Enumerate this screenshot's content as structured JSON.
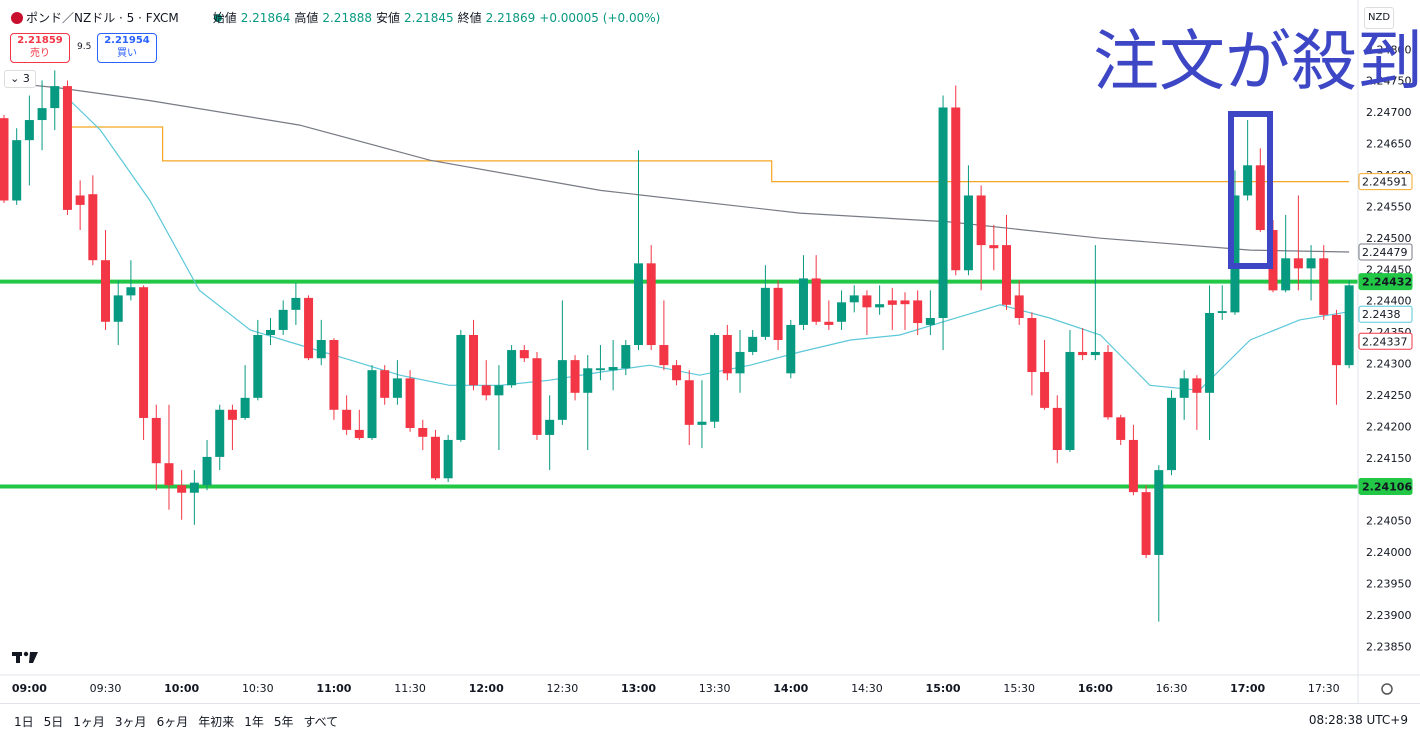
{
  "header": {
    "symbol": "ポンド／NZドル · 5 · FXCM",
    "open_label": "始値",
    "open": "2.21864",
    "high_label": "高値",
    "high": "2.21888",
    "low_label": "安値",
    "low": "2.21845",
    "close_label": "終値",
    "close": "2.21869",
    "change": "+0.00005 (+0.00%)",
    "sell_price": "2.21859",
    "sell_label": "売り",
    "spread": "9.5",
    "buy_price": "2.21954",
    "buy_label": "買い",
    "indicators_count": "3",
    "currency": "NZD"
  },
  "toolbar": {
    "ranges": [
      "1日",
      "5日",
      "1ヶ月",
      "3ヶ月",
      "6ヶ月",
      "年初来",
      "1年",
      "5年",
      "すべて"
    ],
    "clock": "08:28:38 UTC+9"
  },
  "chart_data": {
    "type": "candlestick",
    "annotation": "注文が殺到",
    "categories": [
      null,
      null,
      "09:00",
      null,
      null,
      null,
      null,
      null,
      "09:30",
      null,
      null,
      null,
      null,
      null,
      "10:00",
      null,
      null,
      null,
      null,
      null,
      "10:30",
      null,
      null,
      null,
      null,
      null,
      "11:00",
      null,
      null,
      null,
      null,
      null,
      "11:30",
      null,
      null,
      null,
      null,
      null,
      "12:00",
      null,
      null,
      null,
      null,
      null,
      "12:30",
      null,
      null,
      null,
      null,
      null,
      "13:00",
      null,
      null,
      null,
      null,
      null,
      "13:30",
      null,
      null,
      null,
      null,
      null,
      "14:00",
      null,
      null,
      null,
      null,
      null,
      "14:30",
      null,
      null,
      null,
      null,
      null,
      "15:00",
      null,
      null,
      null,
      null,
      null,
      "15:30",
      null,
      null,
      null,
      null,
      null,
      "16:00",
      null,
      null,
      null,
      null,
      null,
      "16:30",
      null,
      null,
      null,
      null,
      null,
      "17:00",
      null,
      null,
      null,
      null,
      null,
      "17:30",
      null,
      null
    ],
    "open": [
      2.24692,
      2.24561,
      2.24657,
      2.24689,
      2.24708,
      2.24743,
      2.24569,
      2.24571,
      2.24466,
      2.24368,
      2.2441,
      2.24423,
      2.24215,
      2.24143,
      2.24108,
      2.24096,
      2.24108,
      2.24153,
      2.24228,
      2.24215,
      2.24247,
      2.24347,
      2.24355,
      2.24387,
      2.24406,
      2.2431,
      2.24339,
      2.24228,
      2.24196,
      2.24183,
      2.24291,
      2.24247,
      2.24278,
      2.24199,
      2.24185,
      2.24119,
      2.2418,
      2.24347,
      2.24267,
      2.24251,
      2.24267,
      2.24323,
      2.2431,
      2.24188,
      2.24212,
      2.24307,
      2.24255,
      2.24291,
      2.24291,
      2.24294,
      2.24331,
      2.24461,
      2.24331,
      2.24299,
      2.24275,
      2.24204,
      2.24209,
      2.24347,
      2.24286,
      2.2432,
      2.24344,
      2.24422,
      2.24286,
      2.24363,
      2.24437,
      2.24368,
      2.24368,
      2.24399,
      2.2441,
      2.24391,
      2.24402,
      2.24402,
      2.24402,
      2.24363,
      2.24374,
      2.24709,
      2.2445,
      2.24569,
      2.2449,
      2.2449,
      2.2441,
      2.24374,
      2.24288,
      2.24231,
      2.24164,
      2.2432,
      2.24315,
      2.2432,
      2.24216,
      2.2418,
      2.24097,
      2.23997,
      2.24132,
      2.24247,
      2.24278,
      2.24255,
      2.24382,
      2.24383,
      2.24569,
      2.24617,
      2.24514,
      2.24418,
      2.24469,
      2.24453,
      2.24469,
      2.24379,
      2.24299
    ],
    "high": [
      2.24697,
      2.24676,
      2.24728,
      2.24752,
      2.24768,
      2.24752,
      2.24593,
      2.24601,
      2.24514,
      2.24434,
      2.24466,
      2.24426,
      2.24236,
      2.24236,
      2.24132,
      2.24132,
      2.2418,
      2.24236,
      2.24236,
      2.24299,
      2.24371,
      2.24374,
      2.24402,
      2.2443,
      2.2441,
      2.24371,
      2.24342,
      2.24251,
      2.24228,
      2.24299,
      2.24299,
      2.24307,
      2.24291,
      2.24212,
      2.24196,
      2.24188,
      2.24355,
      2.24371,
      2.24307,
      2.24299,
      2.24331,
      2.24331,
      2.2432,
      2.24251,
      2.24402,
      2.24315,
      2.24315,
      2.24331,
      2.24339,
      2.24339,
      2.24641,
      2.2449,
      2.24402,
      2.24307,
      2.24291,
      2.24275,
      2.2435,
      2.24363,
      2.24355,
      2.24355,
      2.24458,
      2.24434,
      2.24371,
      2.24474,
      2.24474,
      2.24402,
      2.24418,
      2.24426,
      2.24418,
      2.24426,
      2.24422,
      2.24415,
      2.24418,
      2.24418,
      2.24728,
      2.24744,
      2.24617,
      2.24585,
      2.24522,
      2.24538,
      2.24434,
      2.24383,
      2.24339,
      2.24251,
      2.24355,
      2.24358,
      2.2449,
      2.24331,
      2.2422,
      2.24204,
      2.24108,
      2.2414,
      2.24259,
      2.24291,
      2.24283,
      2.24426,
      2.24426,
      2.24609,
      2.24689,
      2.24644,
      2.2453,
      2.24538,
      2.24569,
      2.2449,
      2.2449,
      2.24387,
      2.24434
    ],
    "low": [
      2.24557,
      2.24554,
      2.24585,
      2.24641,
      2.24673,
      2.24538,
      2.24514,
      2.24458,
      2.24355,
      2.24331,
      2.24402,
      2.2418,
      2.241,
      2.24069,
      2.24053,
      2.24045,
      2.241,
      2.24132,
      2.24164,
      2.24212,
      2.24243,
      2.24331,
      2.24347,
      2.24363,
      2.24307,
      2.24299,
      2.24212,
      2.24188,
      2.2418,
      2.2418,
      2.24236,
      2.24236,
      2.24193,
      2.24164,
      2.24116,
      2.24113,
      2.24177,
      2.24259,
      2.24243,
      2.24164,
      2.24263,
      2.24304,
      2.2418,
      2.24132,
      2.24204,
      2.24243,
      2.24164,
      2.24275,
      2.24259,
      2.24283,
      2.24323,
      2.24323,
      2.24291,
      2.24267,
      2.24172,
      2.24167,
      2.24199,
      2.24275,
      2.24255,
      2.24315,
      2.24339,
      2.24323,
      2.24278,
      2.24355,
      2.24363,
      2.24355,
      2.24355,
      2.24383,
      2.24347,
      2.24379,
      2.24355,
      2.24355,
      2.24347,
      2.24347,
      2.24323,
      2.24442,
      2.24442,
      2.24418,
      2.2445,
      2.24387,
      2.24363,
      2.24251,
      2.24228,
      2.24143,
      2.24161,
      2.24307,
      2.24307,
      2.24212,
      2.24172,
      2.24092,
      2.23992,
      2.23891,
      2.24124,
      2.24212,
      2.24196,
      2.2418,
      2.24371,
      2.24379,
      2.24561,
      2.24511,
      2.24415,
      2.24415,
      2.24418,
      2.24402,
      2.24371,
      2.24236,
      2.24294
    ],
    "close": [
      2.24561,
      2.24657,
      2.24689,
      2.24708,
      2.24743,
      2.24546,
      2.24554,
      2.24466,
      2.24368,
      2.2441,
      2.24423,
      2.24215,
      2.24143,
      2.24108,
      2.24096,
      2.24112,
      2.24153,
      2.24228,
      2.24212,
      2.24247,
      2.24347,
      2.24355,
      2.24387,
      2.24406,
      2.2431,
      2.24339,
      2.24228,
      2.24196,
      2.24183,
      2.24291,
      2.24247,
      2.24278,
      2.24199,
      2.24185,
      2.24119,
      2.2418,
      2.24347,
      2.24267,
      2.24251,
      2.24267,
      2.24323,
      2.2431,
      2.24188,
      2.24212,
      2.24307,
      2.24255,
      2.24294,
      2.24294,
      2.24296,
      2.24331,
      2.24461,
      2.24331,
      2.24299,
      2.24275,
      2.24204,
      2.24209,
      2.24347,
      2.24286,
      2.2432,
      2.24344,
      2.24422,
      2.24339,
      2.24363,
      2.24437,
      2.24368,
      2.24363,
      2.24399,
      2.2441,
      2.24391,
      2.24396,
      2.24395,
      2.24396,
      2.24366,
      2.24374,
      2.24709,
      2.2445,
      2.24569,
      2.2449,
      2.24485,
      2.24395,
      2.24374,
      2.24288,
      2.24231,
      2.24164,
      2.2432,
      2.24315,
      2.2432,
      2.24216,
      2.2418,
      2.24097,
      2.23997,
      2.24132,
      2.24247,
      2.24278,
      2.24255,
      2.24382,
      2.24385,
      2.24569,
      2.24617,
      2.24514,
      2.24418,
      2.24469,
      2.24453,
      2.24469,
      2.24379,
      2.24299,
      2.24426
    ],
    "up_color": "#089981",
    "down_color": "#f23645",
    "overlays": [
      {
        "color": "#f5a623",
        "x": [
          5,
          12.5,
          12.5,
          60.5,
          60.5,
          106
        ],
        "values": [
          2.24678,
          2.24678,
          2.24624,
          2.24624,
          2.24591,
          2.24591
        ]
      },
      {
        "color": "#787b86",
        "x": [
          0,
          4.4,
          11.5,
          23.3,
          33.6,
          47,
          62.7,
          74.5,
          86.4,
          98.2,
          106
        ],
        "values": [
          2.24749,
          2.2474,
          2.2472,
          2.24681,
          2.24625,
          2.24577,
          2.24541,
          2.24527,
          2.24501,
          2.24482,
          2.24479
        ]
      },
      {
        "color": "#5bc8d8",
        "x": [
          4.8,
          7.6,
          11.5,
          15.4,
          19.4,
          23.3,
          27.3,
          31.2,
          35.1,
          39.1,
          43,
          47,
          50.9,
          54.8,
          58.8,
          62.7,
          66.7,
          70.6,
          74.5,
          78.5,
          82.4,
          86.4,
          90.3,
          94.2,
          98.2,
          102.1,
          106
        ],
        "values": [
          2.24728,
          2.24673,
          2.24561,
          2.24418,
          2.24355,
          2.24331,
          2.24307,
          2.24283,
          2.24267,
          2.24267,
          2.24275,
          2.24288,
          2.24299,
          2.24283,
          2.24299,
          2.2432,
          2.24339,
          2.24347,
          2.24371,
          2.24395,
          2.24374,
          2.24347,
          2.24267,
          2.24259,
          2.24339,
          2.24371,
          2.24384
        ]
      }
    ],
    "levels": [
      {
        "value": 2.24432,
        "color": "#22c745"
      },
      {
        "value": 2.24106,
        "color": "#22c745"
      }
    ],
    "price_tags": [
      {
        "value": 2.24591,
        "color": "#f5a623",
        "filled": false
      },
      {
        "value": 2.24479,
        "color": "#787b86",
        "filled": false
      },
      {
        "value": 2.24432,
        "color": "#22c745",
        "filled": true
      },
      {
        "value": 2.2438,
        "color": "#5bc8d8",
        "filled": false
      },
      {
        "value": 2.24337,
        "color": "#f23645",
        "filled": false
      },
      {
        "value": 2.24106,
        "color": "#22c745",
        "filled": true
      }
    ],
    "ylim": [
      2.23806,
      2.2488
    ],
    "yticks": [
      {
        "value": 2.248,
        "label": "2.24800"
      },
      {
        "value": 2.2475,
        "label": "2.24750"
      },
      {
        "value": 2.247,
        "label": "2.24700"
      },
      {
        "value": 2.2465,
        "label": "2.24650"
      },
      {
        "value": 2.246,
        "label": "2.24600"
      },
      {
        "value": 2.2455,
        "label": "2.24550"
      },
      {
        "value": 2.245,
        "label": "2.24500"
      },
      {
        "value": 2.2445,
        "label": "2.24450"
      },
      {
        "value": 2.244,
        "label": "2.24400"
      },
      {
        "value": 2.2435,
        "label": "2.24350"
      },
      {
        "value": 2.243,
        "label": "2.24300"
      },
      {
        "value": 2.2425,
        "label": "2.24250"
      },
      {
        "value": 2.242,
        "label": "2.24200"
      },
      {
        "value": 2.2415,
        "label": "2.24150"
      },
      {
        "value": 2.2405,
        "label": "2.24050"
      },
      {
        "value": 2.24,
        "label": "2.24000"
      },
      {
        "value": 2.2395,
        "label": "2.23950"
      },
      {
        "value": 2.239,
        "label": "2.23900"
      },
      {
        "value": 2.2385,
        "label": "2.23850"
      }
    ]
  }
}
